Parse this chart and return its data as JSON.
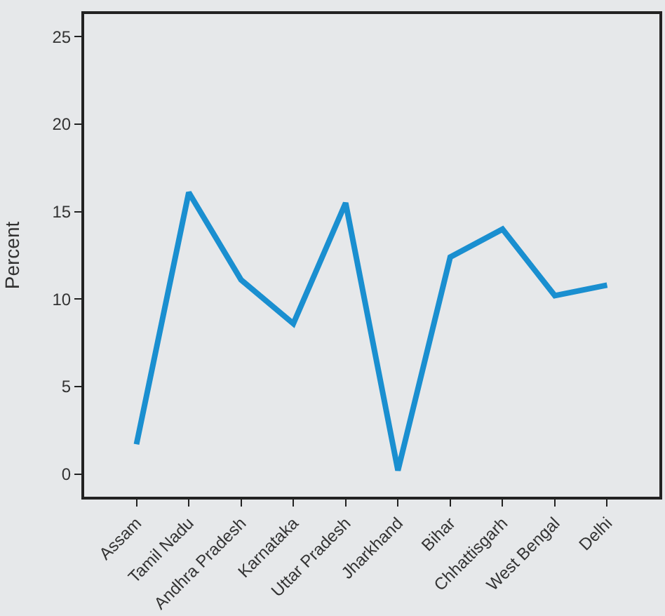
{
  "chart_data": {
    "type": "line",
    "ylabel": "Percent",
    "categories": [
      "Assam",
      "Tamil Nadu",
      "Andhra Pradesh",
      "Karnataka",
      "Uttar Pradesh",
      "Jharkhand",
      "Bihar",
      "Chhattisgarh",
      "West Bengal",
      "Delhi"
    ],
    "series": [
      {
        "color": "#1a8fd0",
        "values": [
          1.7,
          16.1,
          11.1,
          8.6,
          15.5,
          0.2,
          12.4,
          14.0,
          10.2,
          10.8
        ]
      }
    ],
    "ylim": [
      -1.3,
      26.3
    ],
    "yticks": [
      0,
      5,
      10,
      15,
      20,
      25
    ],
    "grid": false,
    "marker": "none",
    "line_style": "solid"
  }
}
